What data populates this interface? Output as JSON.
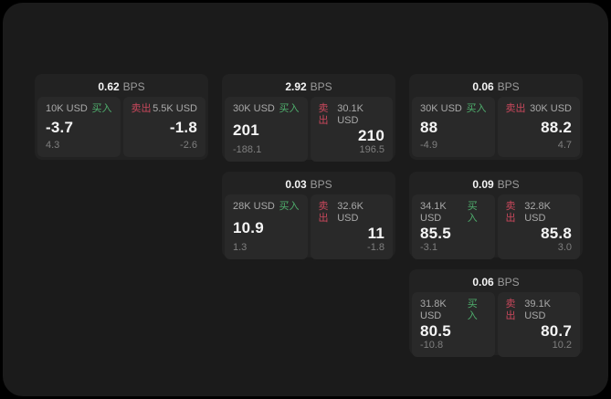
{
  "theme": {
    "page_background": "#000000",
    "surface_background": "#1b1b1b",
    "card_background": "#222222",
    "panel_background": "#292929",
    "buy_color": "#4fae6d",
    "sell_color": "#c9485c",
    "value_color": "#f5f5f5",
    "muted_color": "#7f7f7f"
  },
  "cards": [
    {
      "bps_value": "0.62",
      "bps_label": "BPS",
      "buy": {
        "amount": "10K USD",
        "side_label": "买入",
        "value": "-3.7",
        "sub_value": "4.3"
      },
      "sell": {
        "side_label": "卖出",
        "amount": "5.5K USD",
        "value": "-1.8",
        "sub_value": "-2.6"
      }
    },
    {
      "bps_value": "2.92",
      "bps_label": "BPS",
      "buy": {
        "amount": "30K USD",
        "side_label": "买入",
        "value": "201",
        "sub_value": "-188.1"
      },
      "sell": {
        "side_label": "卖出",
        "amount": "30.1K USD",
        "value": "210",
        "sub_value": "196.5"
      }
    },
    {
      "bps_value": "0.06",
      "bps_label": "BPS",
      "buy": {
        "amount": "30K USD",
        "side_label": "买入",
        "value": "88",
        "sub_value": "-4.9"
      },
      "sell": {
        "side_label": "卖出",
        "amount": "30K USD",
        "value": "88.2",
        "sub_value": "4.7"
      }
    },
    {
      "bps_value": "0.03",
      "bps_label": "BPS",
      "buy": {
        "amount": "28K USD",
        "side_label": "买入",
        "value": "10.9",
        "sub_value": "1.3"
      },
      "sell": {
        "side_label": "卖出",
        "amount": "32.6K USD",
        "value": "11",
        "sub_value": "-1.8"
      }
    },
    {
      "bps_value": "0.09",
      "bps_label": "BPS",
      "buy": {
        "amount": "34.1K USD",
        "side_label": "买入",
        "value": "85.5",
        "sub_value": "-3.1"
      },
      "sell": {
        "side_label": "卖出",
        "amount": "32.8K USD",
        "value": "85.8",
        "sub_value": "3.0"
      }
    },
    {
      "bps_value": "0.06",
      "bps_label": "BPS",
      "buy": {
        "amount": "31.8K USD",
        "side_label": "买入",
        "value": "80.5",
        "sub_value": "-10.8"
      },
      "sell": {
        "side_label": "卖出",
        "amount": "39.1K USD",
        "value": "80.7",
        "sub_value": "10.2"
      }
    }
  ]
}
